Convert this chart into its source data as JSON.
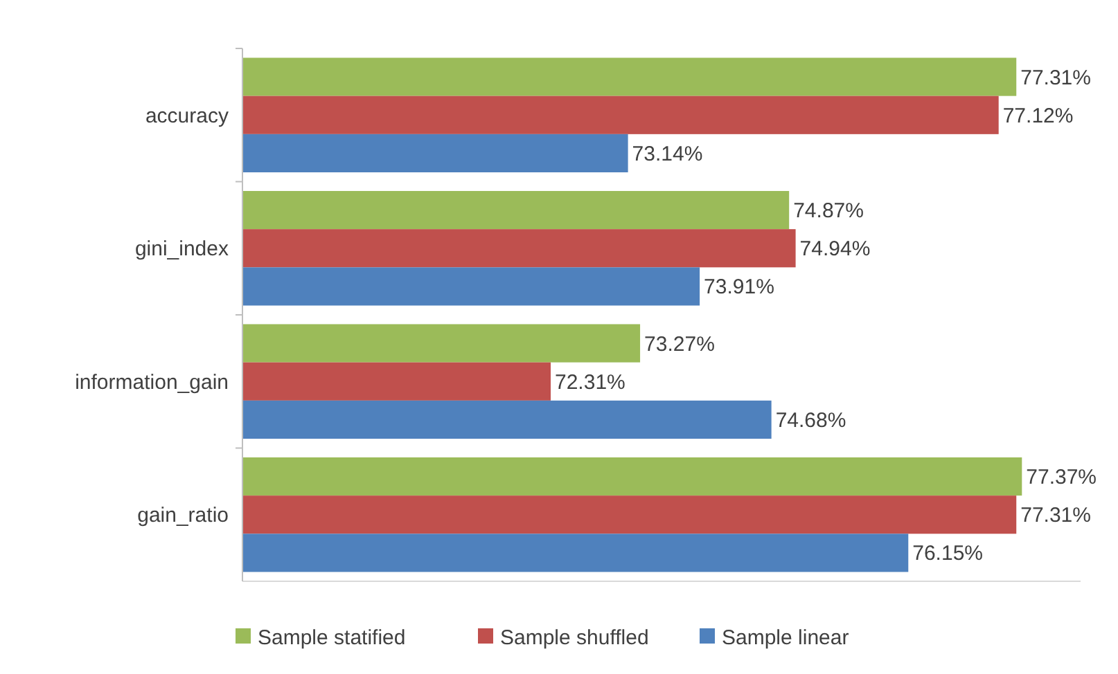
{
  "chart_data": {
    "type": "bar",
    "orientation": "horizontal",
    "categories": [
      "accuracy",
      "gini_index",
      "information_gain",
      "gain_ratio"
    ],
    "xlim": [
      69,
      78
    ],
    "tick_labels": "y",
    "legend": "bottom",
    "series": [
      {
        "name": "Sample statified",
        "color": "#9bbb59",
        "values": [
          77.31,
          74.87,
          73.27,
          77.37
        ],
        "value_labels": [
          "77.31%",
          "74.87%",
          "73.27%",
          "77.37%"
        ]
      },
      {
        "name": "Sample shuffled",
        "color": "#c0504d",
        "values": [
          77.12,
          74.94,
          72.31,
          77.31
        ],
        "value_labels": [
          "77.12%",
          "74.94%",
          "72.31%",
          "77.31%"
        ]
      },
      {
        "name": "Sample linear",
        "color": "#4f81bd",
        "values": [
          73.14,
          73.91,
          74.68,
          76.15
        ],
        "value_labels": [
          "73.14%",
          "73.91%",
          "74.68%",
          "76.15%"
        ]
      }
    ]
  }
}
